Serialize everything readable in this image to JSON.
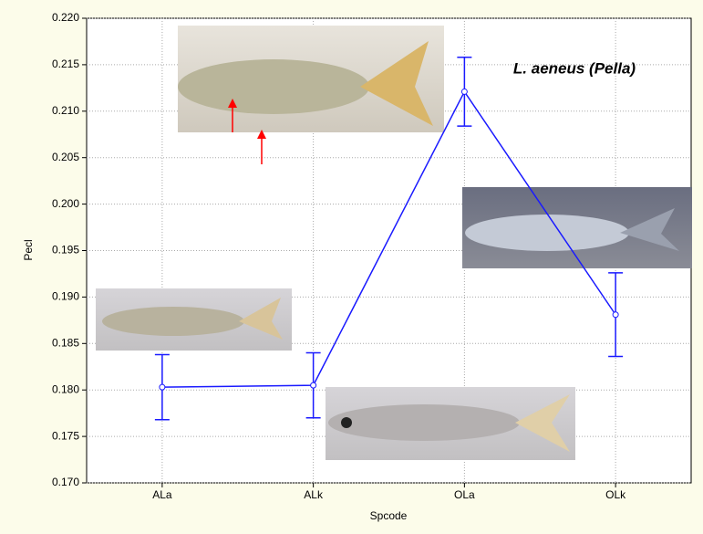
{
  "chart_data": {
    "type": "line",
    "annotation": "L. aeneus (Pella)",
    "x_label": "Spcode",
    "y_label": "Pecl",
    "categories": [
      "ALa",
      "ALk",
      "OLa",
      "OLk"
    ],
    "series": [
      {
        "color": "#1a1aff",
        "values": [
          0.1803,
          0.1805,
          0.2121,
          0.1881
        ],
        "errors": [
          0.0035,
          0.0035,
          0.0037,
          0.0045
        ]
      }
    ],
    "ylim": [
      0.17,
      0.22
    ],
    "yticks": [
      {
        "value": 0.17,
        "label": "0.170"
      },
      0.175,
      {
        "value": 0.18,
        "label": "0.180"
      },
      0.185,
      {
        "value": 0.19,
        "label": "0.190"
      },
      0.195,
      {
        "value": 0.2,
        "label": "0.200"
      },
      0.205,
      {
        "value": 0.21,
        "label": "0.210"
      },
      0.215,
      {
        "value": 0.22,
        "label": "0.220"
      }
    ],
    "grid": true
  }
}
